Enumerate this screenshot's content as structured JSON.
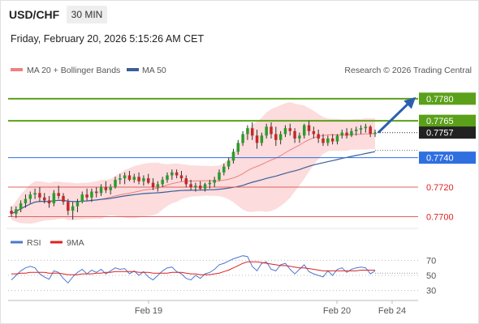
{
  "header": {
    "symbol": "USD/CHF",
    "timeframe": "30 MIN",
    "timestamp": "Friday, February 20, 2026 5:15:26 AM CET"
  },
  "legend": {
    "ma20_label": "MA 20 + Bollinger Bands",
    "ma50_label": "MA 50",
    "credit": "Research © 2026 Trading Central",
    "rsi_label": "RSI",
    "ma9_label": "9MA"
  },
  "colors": {
    "candle_up": "#2a9d2a",
    "candle_down": "#c62828",
    "ma20": "#f08080",
    "bollinger_fill": "#fbd0d0",
    "ma50": "#3a5f9a",
    "resistance": "#5ba01a",
    "support_blue": "#2f6fe0",
    "support_red": "#e06060",
    "arrow": "#2a5fb0",
    "rsi": "#4a78d0",
    "rsi_ma": "#e02020"
  },
  "chart_data": [
    {
      "type": "candlestick",
      "y_range": [
        0.7692,
        0.7792
      ],
      "x_labels": [
        "Feb 19",
        "Feb 20",
        "Feb 24"
      ],
      "last_price": 0.7757,
      "levels": [
        {
          "value": 0.778,
          "label": "0.7780",
          "kind": "resistance"
        },
        {
          "value": 0.7765,
          "label": "0.7765",
          "kind": "resistance"
        },
        {
          "value": 0.7757,
          "label": "0.7757",
          "kind": "last"
        },
        {
          "value": 0.774,
          "label": "0.7740",
          "kind": "pivot"
        },
        {
          "value": 0.772,
          "label": "0.7720",
          "kind": "support"
        },
        {
          "value": 0.77,
          "label": "0.7700",
          "kind": "support"
        }
      ],
      "candles": [
        [
          0.7704,
          0.7707,
          0.77,
          0.7702
        ],
        [
          0.7702,
          0.7707,
          0.7699,
          0.7705
        ],
        [
          0.7705,
          0.7711,
          0.7703,
          0.7709
        ],
        [
          0.7709,
          0.7715,
          0.7706,
          0.7712
        ],
        [
          0.7712,
          0.7717,
          0.7709,
          0.7715
        ],
        [
          0.7715,
          0.7719,
          0.7712,
          0.7716
        ],
        [
          0.7716,
          0.772,
          0.771,
          0.7713
        ],
        [
          0.7713,
          0.7716,
          0.7709,
          0.7711
        ],
        [
          0.7711,
          0.7714,
          0.7706,
          0.7709
        ],
        [
          0.7709,
          0.7718,
          0.7707,
          0.7716
        ],
        [
          0.7716,
          0.7721,
          0.7712,
          0.7714
        ],
        [
          0.7714,
          0.7716,
          0.7708,
          0.771
        ],
        [
          0.771,
          0.7712,
          0.7701,
          0.7704
        ],
        [
          0.7704,
          0.771,
          0.7698,
          0.7707
        ],
        [
          0.7707,
          0.7712,
          0.7703,
          0.771
        ],
        [
          0.771,
          0.7717,
          0.7709,
          0.7715
        ],
        [
          0.7715,
          0.7719,
          0.7711,
          0.7713
        ],
        [
          0.7713,
          0.7719,
          0.771,
          0.7717
        ],
        [
          0.7717,
          0.772,
          0.7713,
          0.7716
        ],
        [
          0.7716,
          0.7722,
          0.7714,
          0.772
        ],
        [
          0.772,
          0.7724,
          0.7716,
          0.7718
        ],
        [
          0.7718,
          0.7722,
          0.7715,
          0.772
        ],
        [
          0.772,
          0.7727,
          0.7719,
          0.7725
        ],
        [
          0.7725,
          0.7729,
          0.7722,
          0.7726
        ],
        [
          0.7726,
          0.773,
          0.7722,
          0.7728
        ],
        [
          0.7728,
          0.7731,
          0.7724,
          0.7725
        ],
        [
          0.7725,
          0.7729,
          0.7723,
          0.7727
        ],
        [
          0.7727,
          0.773,
          0.7722,
          0.7724
        ],
        [
          0.7724,
          0.7728,
          0.7721,
          0.7726
        ],
        [
          0.7726,
          0.7729,
          0.7722,
          0.7723
        ],
        [
          0.7723,
          0.7726,
          0.7718,
          0.772
        ],
        [
          0.772,
          0.7724,
          0.7717,
          0.7722
        ],
        [
          0.7722,
          0.7727,
          0.772,
          0.7725
        ],
        [
          0.7725,
          0.773,
          0.7723,
          0.7728
        ],
        [
          0.7728,
          0.7732,
          0.7725,
          0.773
        ],
        [
          0.773,
          0.7732,
          0.7726,
          0.7728
        ],
        [
          0.7728,
          0.7731,
          0.7724,
          0.7726
        ],
        [
          0.7726,
          0.7728,
          0.772,
          0.7722
        ],
        [
          0.7722,
          0.7725,
          0.7718,
          0.772
        ],
        [
          0.772,
          0.7723,
          0.7717,
          0.7721
        ],
        [
          0.7721,
          0.7724,
          0.7718,
          0.7719
        ],
        [
          0.7719,
          0.7723,
          0.7717,
          0.7722
        ],
        [
          0.7722,
          0.7725,
          0.7719,
          0.7723
        ],
        [
          0.7723,
          0.7727,
          0.772,
          0.7725
        ],
        [
          0.7725,
          0.7732,
          0.7724,
          0.773
        ],
        [
          0.773,
          0.7736,
          0.7728,
          0.7734
        ],
        [
          0.7734,
          0.774,
          0.7732,
          0.7738
        ],
        [
          0.7738,
          0.7746,
          0.7736,
          0.7744
        ],
        [
          0.7744,
          0.7752,
          0.7742,
          0.775
        ],
        [
          0.775,
          0.7758,
          0.7748,
          0.7756
        ],
        [
          0.7756,
          0.7762,
          0.7752,
          0.776
        ],
        [
          0.776,
          0.7764,
          0.7752,
          0.7755
        ],
        [
          0.7755,
          0.7759,
          0.7746,
          0.775
        ],
        [
          0.775,
          0.7757,
          0.7748,
          0.7755
        ],
        [
          0.7755,
          0.7763,
          0.7753,
          0.7761
        ],
        [
          0.7761,
          0.7764,
          0.7753,
          0.7756
        ],
        [
          0.7756,
          0.7761,
          0.7748,
          0.7752
        ],
        [
          0.7752,
          0.7758,
          0.7749,
          0.7756
        ],
        [
          0.7756,
          0.7762,
          0.7754,
          0.776
        ],
        [
          0.776,
          0.7763,
          0.7755,
          0.7758
        ],
        [
          0.7758,
          0.776,
          0.775,
          0.7753
        ],
        [
          0.7753,
          0.7757,
          0.775,
          0.7755
        ],
        [
          0.7755,
          0.7763,
          0.7753,
          0.7762
        ],
        [
          0.7762,
          0.7765,
          0.7755,
          0.7758
        ],
        [
          0.7758,
          0.7761,
          0.7753,
          0.7756
        ],
        [
          0.7756,
          0.7759,
          0.775,
          0.7753
        ],
        [
          0.7753,
          0.7756,
          0.7748,
          0.775
        ],
        [
          0.775,
          0.7755,
          0.7748,
          0.7753
        ],
        [
          0.7753,
          0.7756,
          0.7749,
          0.7751
        ],
        [
          0.7751,
          0.7756,
          0.7749,
          0.7755
        ],
        [
          0.7755,
          0.7759,
          0.7753,
          0.7757
        ],
        [
          0.7757,
          0.776,
          0.7753,
          0.7755
        ],
        [
          0.7755,
          0.776,
          0.7754,
          0.7758
        ],
        [
          0.7758,
          0.7761,
          0.7755,
          0.7759
        ],
        [
          0.7759,
          0.7762,
          0.7756,
          0.776
        ],
        [
          0.776,
          0.7763,
          0.7757,
          0.7761
        ],
        [
          0.7761,
          0.7762,
          0.7754,
          0.7756
        ],
        [
          0.7756,
          0.7759,
          0.7754,
          0.7757
        ]
      ],
      "forecast": {
        "from": 0.7757,
        "to": 0.778
      }
    },
    {
      "type": "line",
      "title": "RSI",
      "y_range": [
        20,
        80
      ],
      "y_ticks": [
        70,
        50,
        30
      ],
      "series": [
        {
          "name": "RSI",
          "values": [
            44,
            50,
            56,
            60,
            62,
            60,
            52,
            48,
            45,
            56,
            54,
            46,
            40,
            48,
            54,
            58,
            52,
            57,
            54,
            58,
            52,
            56,
            60,
            58,
            59,
            52,
            56,
            50,
            55,
            48,
            44,
            50,
            56,
            60,
            61,
            55,
            52,
            46,
            44,
            50,
            46,
            52,
            54,
            58,
            64,
            66,
            69,
            72,
            74,
            76,
            75,
            62,
            56,
            66,
            68,
            58,
            56,
            64,
            66,
            58,
            52,
            58,
            64,
            55,
            52,
            50,
            48,
            56,
            50,
            58,
            60,
            54,
            58,
            60,
            61,
            60,
            52,
            56
          ]
        },
        {
          "name": "9MA",
          "values": [
            52,
            52,
            53,
            53,
            54,
            54,
            54,
            54,
            53,
            53,
            53,
            52,
            51,
            51,
            51,
            52,
            52,
            52,
            53,
            53,
            54,
            54,
            55,
            55,
            55,
            55,
            55,
            54,
            54,
            54,
            53,
            53,
            53,
            53,
            54,
            54,
            54,
            53,
            52,
            52,
            51,
            51,
            51,
            52,
            53,
            55,
            57,
            60,
            63,
            66,
            68,
            68,
            68,
            67,
            66,
            65,
            64,
            63,
            63,
            62,
            61,
            60,
            60,
            59,
            58,
            57,
            56,
            56,
            56,
            56,
            56,
            56,
            56,
            56,
            57,
            57,
            57,
            57
          ]
        }
      ]
    }
  ]
}
